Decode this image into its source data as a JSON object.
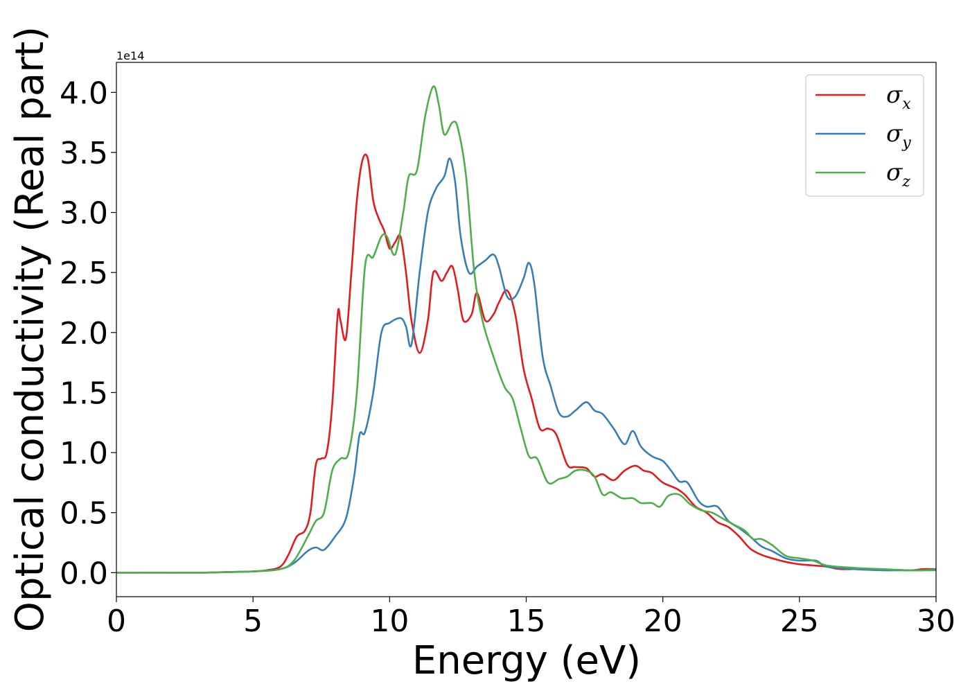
{
  "chart_data": {
    "type": "line",
    "title": "",
    "xlabel": "Energy (eV)",
    "ylabel": "Optical conductivity (Real part)",
    "y_offset_label": "1e14",
    "xlim": [
      0,
      30
    ],
    "ylim": [
      -0.2,
      4.25
    ],
    "xticks": [
      0,
      5,
      10,
      15,
      20,
      25,
      30
    ],
    "xtick_labels": [
      "0",
      "5",
      "10",
      "15",
      "20",
      "25",
      "30"
    ],
    "yticks": [
      0.0,
      0.5,
      1.0,
      1.5,
      2.0,
      2.5,
      3.0,
      3.5,
      4.0
    ],
    "ytick_labels": [
      "0.0",
      "0.5",
      "1.0",
      "1.5",
      "2.0",
      "2.5",
      "3.0",
      "3.5",
      "4.0"
    ],
    "grid": false,
    "legend_position": "top-right",
    "series": [
      {
        "name": "σ_x",
        "legend_symbol": "σ",
        "legend_subscript": "x",
        "color": "#e41a1c",
        "points": [
          [
            0,
            0
          ],
          [
            3,
            0
          ],
          [
            4,
            0.005
          ],
          [
            5,
            0.01
          ],
          [
            5.5,
            0.02
          ],
          [
            6,
            0.05
          ],
          [
            6.3,
            0.15
          ],
          [
            6.6,
            0.3
          ],
          [
            6.9,
            0.35
          ],
          [
            7.1,
            0.5
          ],
          [
            7.3,
            0.9
          ],
          [
            7.5,
            0.95
          ],
          [
            7.7,
            1.0
          ],
          [
            7.9,
            1.4
          ],
          [
            8.1,
            2.15
          ],
          [
            8.2,
            2.1
          ],
          [
            8.4,
            1.95
          ],
          [
            8.6,
            2.5
          ],
          [
            8.8,
            3.1
          ],
          [
            9.0,
            3.43
          ],
          [
            9.2,
            3.45
          ],
          [
            9.4,
            3.1
          ],
          [
            9.6,
            2.95
          ],
          [
            9.8,
            2.85
          ],
          [
            10.0,
            2.7
          ],
          [
            10.2,
            2.75
          ],
          [
            10.4,
            2.8
          ],
          [
            10.6,
            2.5
          ],
          [
            10.8,
            2.1
          ],
          [
            11.1,
            1.83
          ],
          [
            11.4,
            2.1
          ],
          [
            11.6,
            2.5
          ],
          [
            11.9,
            2.43
          ],
          [
            12.1,
            2.5
          ],
          [
            12.3,
            2.55
          ],
          [
            12.5,
            2.35
          ],
          [
            12.7,
            2.1
          ],
          [
            13.0,
            2.15
          ],
          [
            13.2,
            2.33
          ],
          [
            13.5,
            2.1
          ],
          [
            13.8,
            2.15
          ],
          [
            14.0,
            2.25
          ],
          [
            14.3,
            2.35
          ],
          [
            14.6,
            2.15
          ],
          [
            14.9,
            1.7
          ],
          [
            15.2,
            1.45
          ],
          [
            15.5,
            1.2
          ],
          [
            15.8,
            1.2
          ],
          [
            16.1,
            1.15
          ],
          [
            16.5,
            0.9
          ],
          [
            16.8,
            0.88
          ],
          [
            17.2,
            0.87
          ],
          [
            17.5,
            0.8
          ],
          [
            17.8,
            0.82
          ],
          [
            18.2,
            0.77
          ],
          [
            18.6,
            0.85
          ],
          [
            19.0,
            0.89
          ],
          [
            19.3,
            0.85
          ],
          [
            19.6,
            0.83
          ],
          [
            20.0,
            0.75
          ],
          [
            20.5,
            0.7
          ],
          [
            20.8,
            0.65
          ],
          [
            21.2,
            0.55
          ],
          [
            21.6,
            0.5
          ],
          [
            22.0,
            0.42
          ],
          [
            22.4,
            0.38
          ],
          [
            22.8,
            0.3
          ],
          [
            23.2,
            0.2
          ],
          [
            23.6,
            0.15
          ],
          [
            24.0,
            0.12
          ],
          [
            24.5,
            0.09
          ],
          [
            25.0,
            0.07
          ],
          [
            25.5,
            0.06
          ],
          [
            26.0,
            0.05
          ],
          [
            26.5,
            0.03
          ],
          [
            27.5,
            0.03
          ],
          [
            29,
            0.02
          ],
          [
            29.5,
            0.03
          ],
          [
            30,
            0.03
          ]
        ]
      },
      {
        "name": "σ_y",
        "legend_symbol": "σ",
        "legend_subscript": "y",
        "color": "#377eb8",
        "points": [
          [
            0,
            0
          ],
          [
            3,
            0
          ],
          [
            4,
            0.005
          ],
          [
            5,
            0.01
          ],
          [
            6,
            0.03
          ],
          [
            6.5,
            0.08
          ],
          [
            7.0,
            0.18
          ],
          [
            7.3,
            0.21
          ],
          [
            7.6,
            0.19
          ],
          [
            8.0,
            0.3
          ],
          [
            8.4,
            0.45
          ],
          [
            8.7,
            0.8
          ],
          [
            8.9,
            1.15
          ],
          [
            9.1,
            1.17
          ],
          [
            9.4,
            1.5
          ],
          [
            9.7,
            2.0
          ],
          [
            10.0,
            2.08
          ],
          [
            10.4,
            2.12
          ],
          [
            10.6,
            2.05
          ],
          [
            10.8,
            1.9
          ],
          [
            11.1,
            2.5
          ],
          [
            11.4,
            3.0
          ],
          [
            11.7,
            3.2
          ],
          [
            12.0,
            3.3
          ],
          [
            12.2,
            3.45
          ],
          [
            12.4,
            3.25
          ],
          [
            12.6,
            2.8
          ],
          [
            12.9,
            2.5
          ],
          [
            13.2,
            2.55
          ],
          [
            13.5,
            2.6
          ],
          [
            13.8,
            2.65
          ],
          [
            14.0,
            2.55
          ],
          [
            14.3,
            2.3
          ],
          [
            14.6,
            2.3
          ],
          [
            14.9,
            2.45
          ],
          [
            15.1,
            2.58
          ],
          [
            15.3,
            2.4
          ],
          [
            15.6,
            1.8
          ],
          [
            15.9,
            1.55
          ],
          [
            16.2,
            1.33
          ],
          [
            16.5,
            1.3
          ],
          [
            16.8,
            1.35
          ],
          [
            17.2,
            1.42
          ],
          [
            17.5,
            1.35
          ],
          [
            17.8,
            1.32
          ],
          [
            18.2,
            1.2
          ],
          [
            18.6,
            1.07
          ],
          [
            18.9,
            1.18
          ],
          [
            19.2,
            1.05
          ],
          [
            19.6,
            0.97
          ],
          [
            20.0,
            0.93
          ],
          [
            20.3,
            0.85
          ],
          [
            20.6,
            0.76
          ],
          [
            20.9,
            0.75
          ],
          [
            21.3,
            0.6
          ],
          [
            21.6,
            0.55
          ],
          [
            22.0,
            0.55
          ],
          [
            22.4,
            0.43
          ],
          [
            22.8,
            0.37
          ],
          [
            23.2,
            0.3
          ],
          [
            23.6,
            0.22
          ],
          [
            24.0,
            0.18
          ],
          [
            24.5,
            0.12
          ],
          [
            25.0,
            0.1
          ],
          [
            25.6,
            0.1
          ],
          [
            26.0,
            0.05
          ],
          [
            27.0,
            0.03
          ],
          [
            28.0,
            0.02
          ],
          [
            29,
            0.02
          ],
          [
            29.5,
            0.02
          ],
          [
            30,
            0.03
          ]
        ]
      },
      {
        "name": "σ_z",
        "legend_symbol": "σ",
        "legend_subscript": "z",
        "color": "#4daf4a",
        "points": [
          [
            0,
            0
          ],
          [
            3,
            0
          ],
          [
            4,
            0.005
          ],
          [
            5,
            0.01
          ],
          [
            6,
            0.03
          ],
          [
            6.5,
            0.1
          ],
          [
            7.0,
            0.3
          ],
          [
            7.3,
            0.43
          ],
          [
            7.6,
            0.5
          ],
          [
            7.9,
            0.85
          ],
          [
            8.2,
            0.95
          ],
          [
            8.5,
            1.0
          ],
          [
            8.8,
            1.5
          ],
          [
            9.1,
            2.55
          ],
          [
            9.4,
            2.63
          ],
          [
            9.7,
            2.8
          ],
          [
            9.9,
            2.8
          ],
          [
            10.2,
            2.65
          ],
          [
            10.5,
            3.0
          ],
          [
            10.7,
            3.3
          ],
          [
            11.0,
            3.35
          ],
          [
            11.3,
            3.8
          ],
          [
            11.6,
            4.05
          ],
          [
            11.8,
            3.9
          ],
          [
            12.0,
            3.65
          ],
          [
            12.3,
            3.75
          ],
          [
            12.5,
            3.7
          ],
          [
            12.8,
            3.3
          ],
          [
            13.1,
            2.5
          ],
          [
            13.4,
            2.1
          ],
          [
            13.8,
            1.8
          ],
          [
            14.2,
            1.55
          ],
          [
            14.5,
            1.45
          ],
          [
            14.8,
            1.2
          ],
          [
            15.1,
            0.97
          ],
          [
            15.4,
            0.95
          ],
          [
            15.8,
            0.75
          ],
          [
            16.2,
            0.78
          ],
          [
            16.5,
            0.8
          ],
          [
            16.8,
            0.85
          ],
          [
            17.2,
            0.85
          ],
          [
            17.5,
            0.8
          ],
          [
            17.8,
            0.65
          ],
          [
            18.1,
            0.67
          ],
          [
            18.5,
            0.62
          ],
          [
            18.9,
            0.62
          ],
          [
            19.2,
            0.58
          ],
          [
            19.6,
            0.58
          ],
          [
            19.9,
            0.55
          ],
          [
            20.2,
            0.64
          ],
          [
            20.6,
            0.65
          ],
          [
            21.0,
            0.57
          ],
          [
            21.4,
            0.52
          ],
          [
            21.8,
            0.5
          ],
          [
            22.2,
            0.45
          ],
          [
            22.6,
            0.4
          ],
          [
            23.0,
            0.35
          ],
          [
            23.3,
            0.28
          ],
          [
            23.6,
            0.28
          ],
          [
            24.0,
            0.23
          ],
          [
            24.5,
            0.14
          ],
          [
            25.0,
            0.12
          ],
          [
            25.5,
            0.1
          ],
          [
            26.0,
            0.06
          ],
          [
            27.0,
            0.04
          ],
          [
            28.0,
            0.03
          ],
          [
            29,
            0.02
          ],
          [
            30,
            0.02
          ]
        ]
      }
    ]
  }
}
